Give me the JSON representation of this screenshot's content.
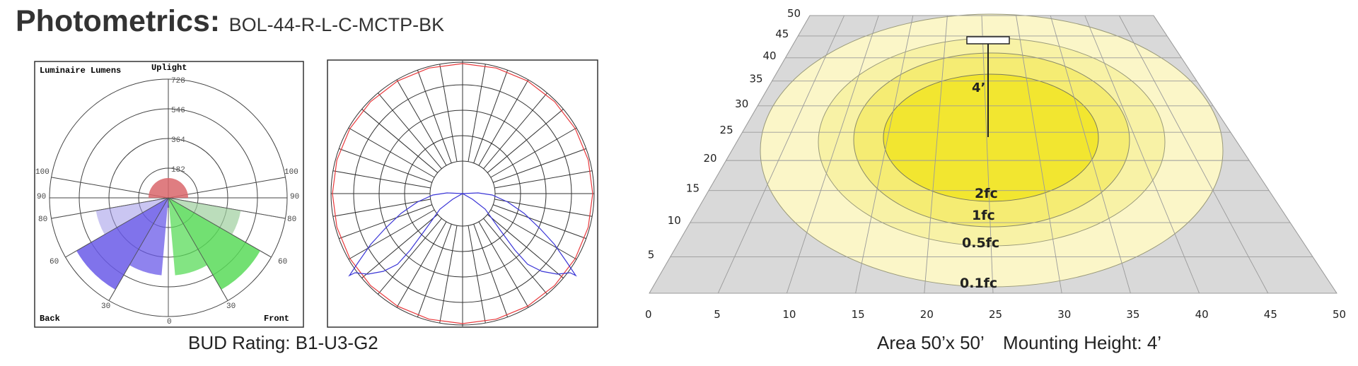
{
  "header": {
    "title": "Photometrics:",
    "model": "BOL-44-R-L-C-MCTP-BK"
  },
  "bug_diagram": {
    "label_top_left": "Luminaire Lumens",
    "label_uplight": "Uplight",
    "label_back": "Back",
    "label_front": "Front",
    "ring_labels": [
      "728",
      "546",
      "364",
      "182"
    ],
    "angle_labels": [
      "100",
      "90",
      "80",
      "60",
      "30",
      "0"
    ],
    "colors": {
      "uplight": "#d9666b",
      "backlight": "#6a5ae8",
      "forward": "#59db59",
      "backlight_faint": "#9f97e8",
      "forward_faint": "#9ecf9e"
    },
    "caption": "BUD Rating: B1-U3-G2"
  },
  "candela_diagram": {
    "colors": {
      "vertical": "#e8383b",
      "horizontal": "#3a35d6"
    }
  },
  "isofootcandle": {
    "x_ticks": [
      "0",
      "5",
      "10",
      "15",
      "20",
      "25",
      "30",
      "35",
      "40",
      "45",
      "50"
    ],
    "y_ticks": [
      "5",
      "10",
      "15",
      "20",
      "25",
      "30",
      "35",
      "40",
      "45",
      "50"
    ],
    "mount_label": "4’",
    "contours": [
      {
        "label": "2fc",
        "color": "#f2e630"
      },
      {
        "label": "1fc",
        "color": "#f5ec73"
      },
      {
        "label": "0.5fc",
        "color": "#f8f2a6"
      },
      {
        "label": "0.1fc",
        "color": "#fbf6c8"
      }
    ],
    "caption_area": "Area 50’x 50’",
    "caption_height": "Mounting Height: 4’"
  }
}
